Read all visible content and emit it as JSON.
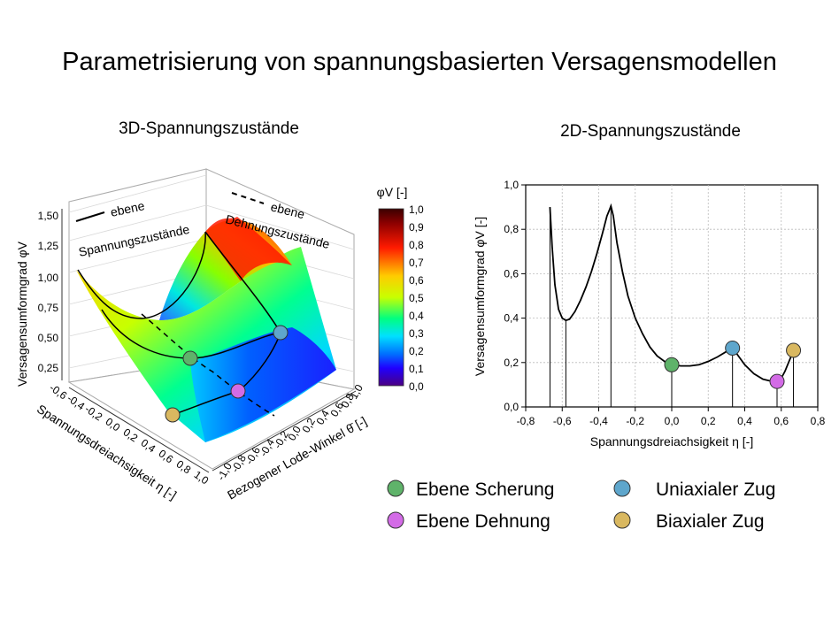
{
  "page": {
    "title": "Parametrisierung von spannungsbasierten Versagensmodellen"
  },
  "left_chart": {
    "subtitle": "3D-Spannungszustände",
    "zlabel": "Versagensumformgrad φV",
    "xlabel": "Spannungsdreiachsigkeit η [-]",
    "ylabel": "Bezogener Lode-Winkel θ̄ [-]",
    "z_ticks": [
      "0,25",
      "0,50",
      "0,75",
      "1,00",
      "1,25",
      "1,50"
    ],
    "eta_ticks": [
      "-0,6",
      "-0,4",
      "-0,2",
      "0,0",
      "0,2",
      "0,4",
      "0,6",
      "0,8",
      "1,0"
    ],
    "lode_ticks": [
      "-1,0",
      "-0,8",
      "-0,6",
      "-0,4",
      "-0,2",
      "0,0",
      "0,2",
      "0,4",
      "0,6",
      "0,8",
      "1,0"
    ],
    "annotation_solid": [
      "ebene",
      "Spannungszustände"
    ],
    "annotation_dashed": [
      "ebene",
      "Dehnungszustände"
    ],
    "colorbar_title": "φV [-]",
    "colorbar_ticks": [
      "1,0",
      "0,9",
      "0,8",
      "0,7",
      "0,6",
      "0,5",
      "0,4",
      "0,3",
      "0,2",
      "0,1",
      "0,0"
    ]
  },
  "chart_data": {
    "type": "line",
    "title": "2D-Spannungszustände",
    "xlabel": "Spannungsdreiachsigkeit η [-]",
    "ylabel": "Versagensumformgrad φV [-]",
    "xlim": [
      -0.8,
      0.8
    ],
    "ylim": [
      0.0,
      1.0
    ],
    "x_ticks": [
      -0.8,
      -0.6,
      -0.4,
      -0.2,
      0.0,
      0.2,
      0.4,
      0.6,
      0.8
    ],
    "y_ticks": [
      0.0,
      0.2,
      0.4,
      0.6,
      0.8,
      1.0
    ],
    "x_tick_labels": [
      "-0,8",
      "-0,6",
      "-0,4",
      "-0,2",
      "0,0",
      "0,2",
      "0,4",
      "0,6",
      "0,8"
    ],
    "y_tick_labels": [
      "0,0",
      "0,2",
      "0,4",
      "0,6",
      "0,8",
      "1,0"
    ],
    "grid": true,
    "series": [
      {
        "x": [
          -0.667,
          -0.655,
          -0.64,
          -0.62,
          -0.6,
          -0.58,
          -0.56,
          -0.53,
          -0.5,
          -0.47,
          -0.44,
          -0.41,
          -0.38,
          -0.355,
          -0.34,
          -0.333,
          -0.32,
          -0.3,
          -0.27,
          -0.24,
          -0.2,
          -0.16,
          -0.12,
          -0.08,
          -0.04,
          0.0,
          0.05,
          0.1,
          0.15,
          0.2,
          0.25,
          0.3,
          0.333,
          0.36,
          0.4,
          0.45,
          0.5,
          0.55,
          0.577,
          0.6,
          0.62,
          0.64,
          0.66,
          0.667
        ],
        "y": [
          0.9,
          0.72,
          0.55,
          0.44,
          0.4,
          0.39,
          0.395,
          0.43,
          0.48,
          0.54,
          0.61,
          0.69,
          0.78,
          0.86,
          0.89,
          0.905,
          0.86,
          0.74,
          0.61,
          0.5,
          0.4,
          0.33,
          0.27,
          0.23,
          0.205,
          0.19,
          0.185,
          0.185,
          0.19,
          0.205,
          0.225,
          0.25,
          0.265,
          0.235,
          0.19,
          0.15,
          0.125,
          0.115,
          0.115,
          0.13,
          0.16,
          0.2,
          0.24,
          0.255
        ]
      }
    ],
    "vertical_lines_x": [
      -0.667,
      -0.58,
      -0.333,
      0.0,
      0.333,
      0.577,
      0.667
    ],
    "markers": [
      {
        "name": "Ebene Scherung",
        "x": 0.0,
        "y": 0.19,
        "color": "#5fb36a"
      },
      {
        "name": "Uniaxialer Zug",
        "x": 0.333,
        "y": 0.265,
        "color": "#5ea6cc"
      },
      {
        "name": "Ebene Dehnung",
        "x": 0.577,
        "y": 0.115,
        "color": "#d36be6"
      },
      {
        "name": "Biaxialer Zug",
        "x": 0.667,
        "y": 0.255,
        "color": "#d9b860"
      }
    ]
  },
  "legend": {
    "items": [
      {
        "label": "Ebene Scherung",
        "color": "#5fb36a"
      },
      {
        "label": "Uniaxialer Zug",
        "color": "#5ea6cc"
      },
      {
        "label": "Ebene Dehnung",
        "color": "#d36be6"
      },
      {
        "label": "Biaxialer Zug",
        "color": "#d9b860"
      }
    ]
  }
}
